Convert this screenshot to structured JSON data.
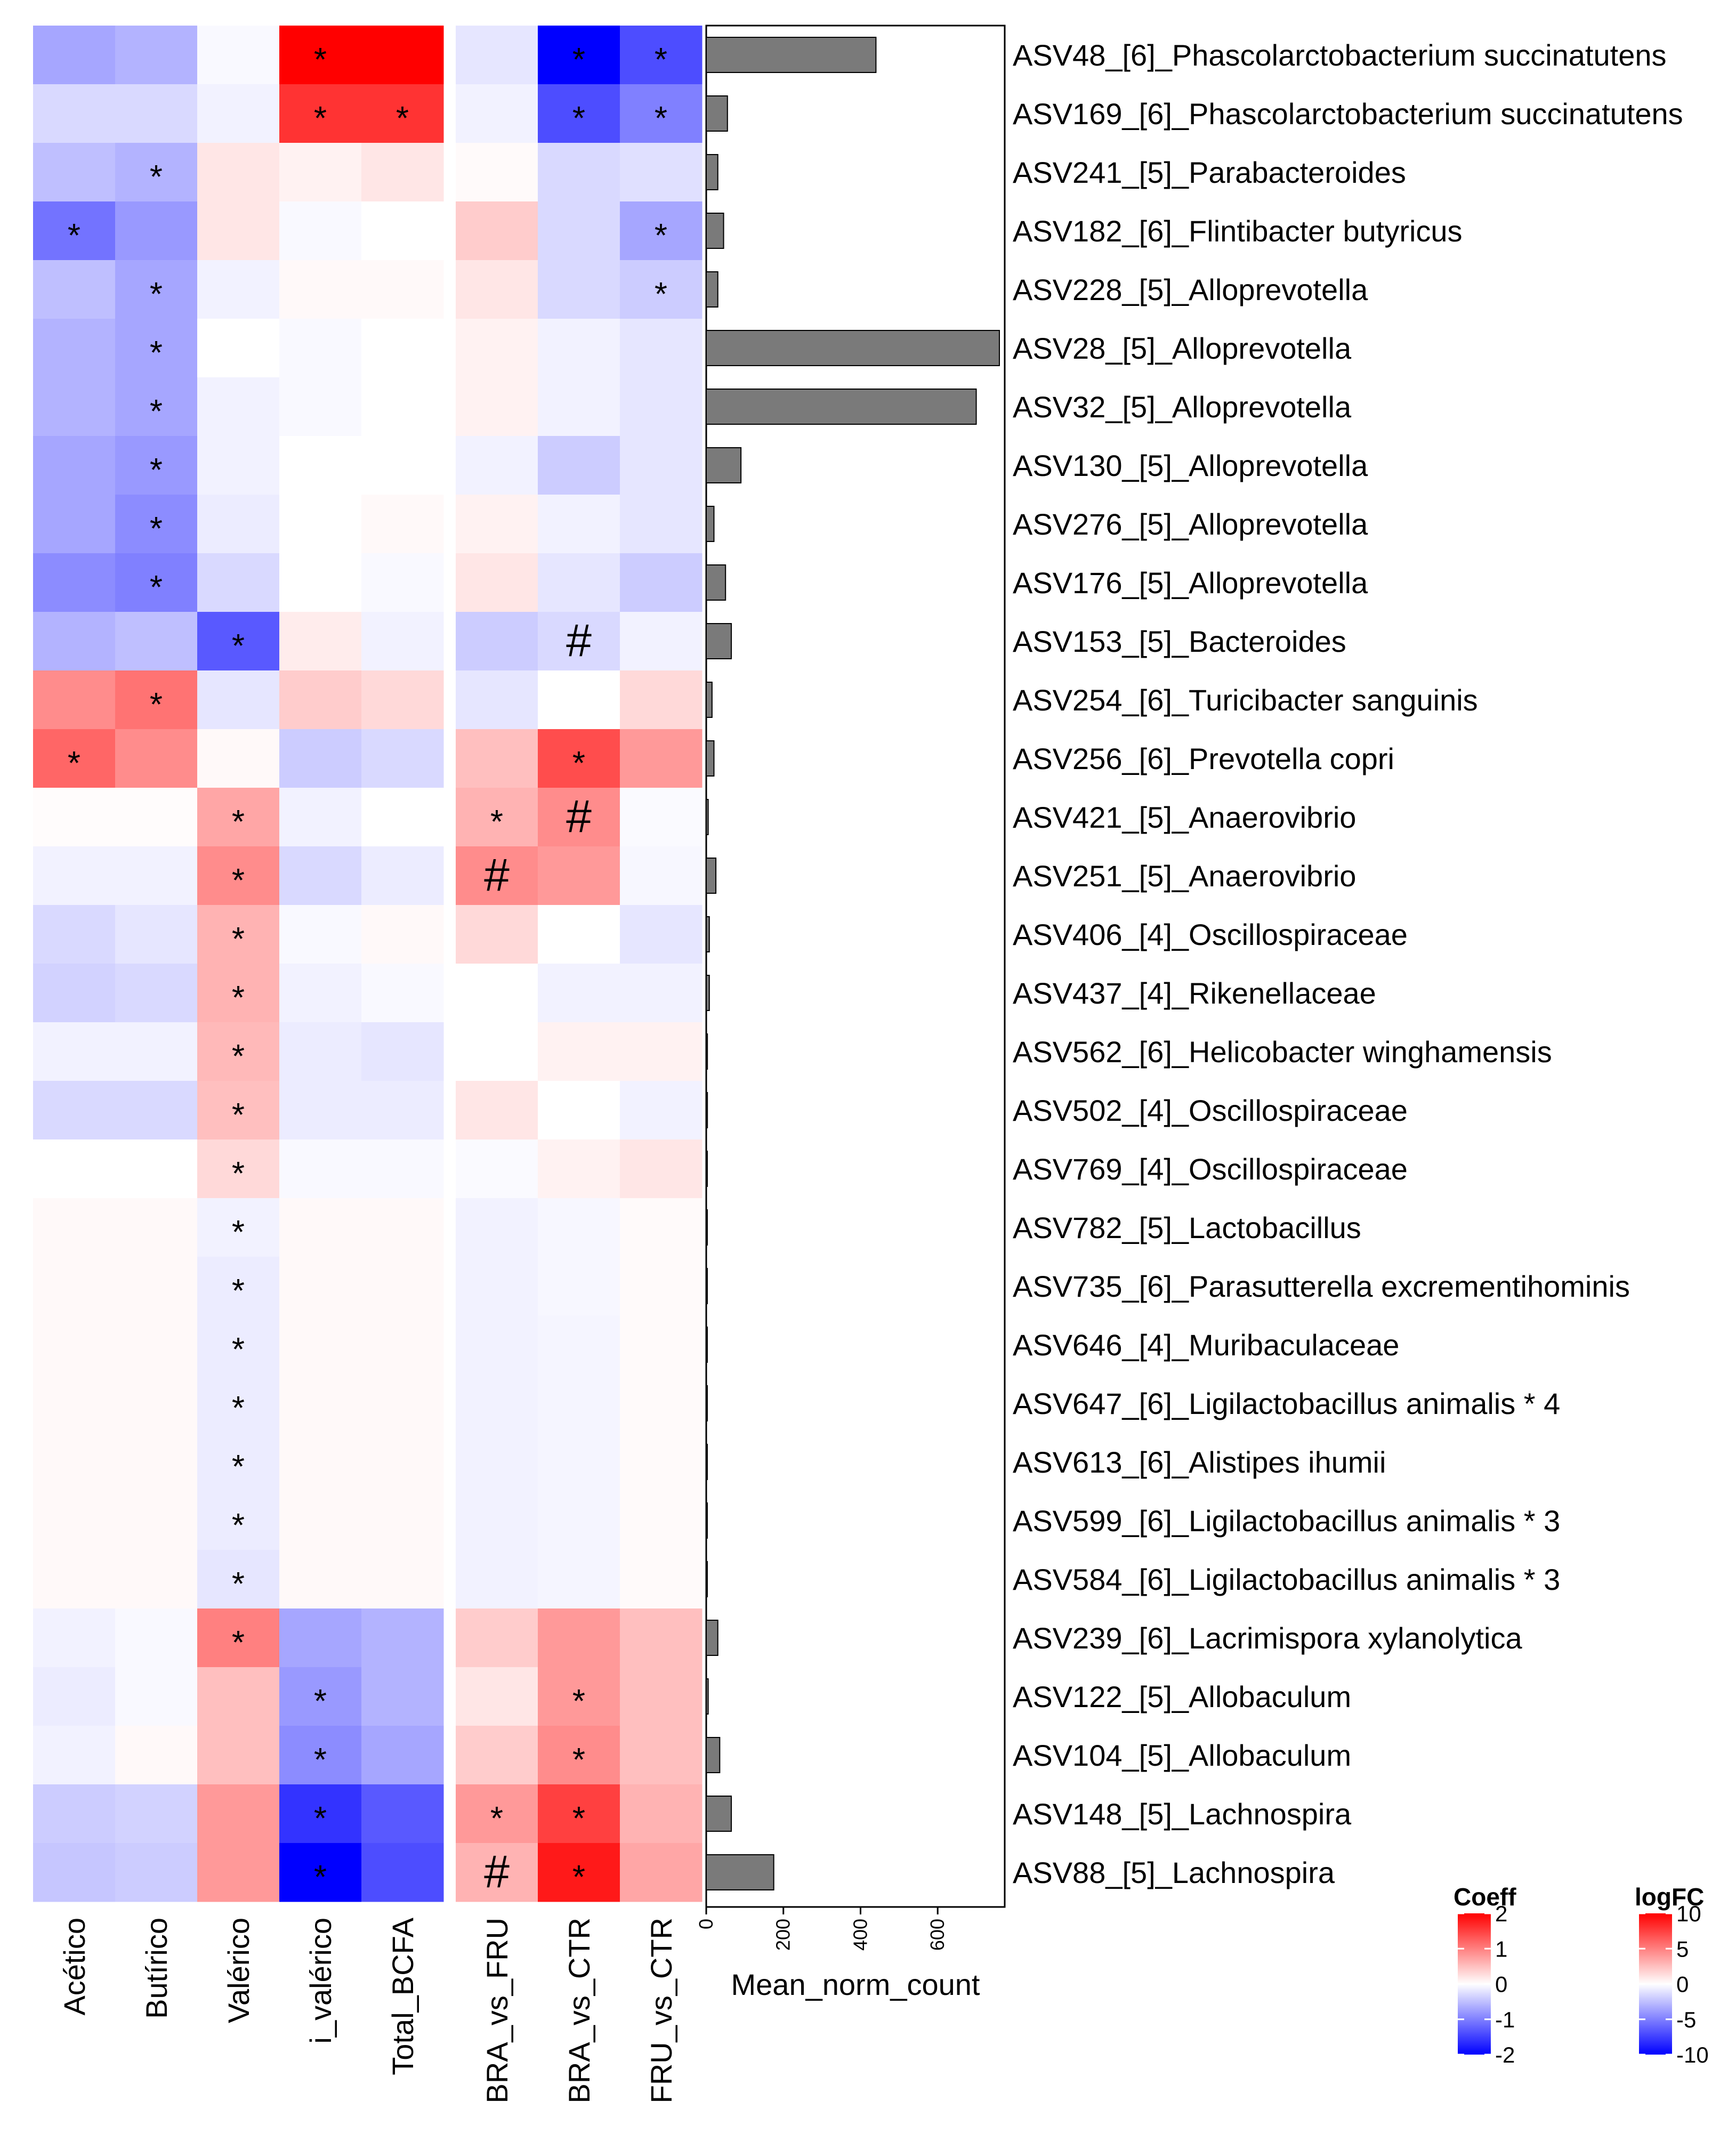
{
  "chart_data": {
    "type": "heatmap",
    "rows": [
      "ASV48_[6]_Phascolarctobacterium succinatutens",
      "ASV169_[6]_Phascolarctobacterium succinatutens",
      "ASV241_[5]_Parabacteroides",
      "ASV182_[6]_Flintibacter butyricus",
      "ASV228_[5]_Alloprevotella",
      "ASV28_[5]_Alloprevotella",
      "ASV32_[5]_Alloprevotella",
      "ASV130_[5]_Alloprevotella",
      "ASV276_[5]_Alloprevotella",
      "ASV176_[5]_Alloprevotella",
      "ASV153_[5]_Bacteroides",
      "ASV254_[6]_Turicibacter sanguinis",
      "ASV256_[6]_Prevotella copri",
      "ASV421_[5]_Anaerovibrio",
      "ASV251_[5]_Anaerovibrio",
      "ASV406_[4]_Oscillospiraceae",
      "ASV437_[4]_Rikenellaceae",
      "ASV562_[6]_Helicobacter winghamensis",
      "ASV502_[4]_Oscillospiraceae",
      "ASV769_[4]_Oscillospiraceae",
      "ASV782_[5]_Lactobacillus",
      "ASV735_[6]_Parasutterella excrementihominis",
      "ASV646_[4]_Muribaculaceae",
      "ASV647_[6]_Ligilactobacillus animalis * 4",
      "ASV613_[6]_Alistipes ihumii",
      "ASV599_[6]_Ligilactobacillus animalis * 3",
      "ASV584_[6]_Ligilactobacillus animalis * 3",
      "ASV239_[6]_Lacrimispora xylanolytica",
      "ASV122_[5]_Allobaculum",
      "ASV104_[5]_Allobaculum",
      "ASV148_[5]_Lachnospira",
      "ASV88_[5]_Lachnospira"
    ],
    "coeff_columns": [
      "Acético",
      "Butírico",
      "Valérico",
      "i_valérico",
      "Total_BCFA"
    ],
    "coeff_values": [
      [
        -0.7,
        -0.6,
        -0.05,
        2.0,
        2.0
      ],
      [
        -0.3,
        -0.3,
        -0.1,
        1.6,
        1.6
      ],
      [
        -0.5,
        -0.6,
        0.2,
        0.1,
        0.2
      ],
      [
        -1.1,
        -0.8,
        0.2,
        -0.05,
        0
      ],
      [
        -0.5,
        -0.7,
        -0.1,
        0.05,
        0.05
      ],
      [
        -0.6,
        -0.7,
        0,
        -0.05,
        0
      ],
      [
        -0.6,
        -0.7,
        -0.1,
        -0.05,
        0
      ],
      [
        -0.7,
        -0.8,
        -0.1,
        0,
        0
      ],
      [
        -0.7,
        -0.9,
        -0.15,
        0,
        0.05
      ],
      [
        -0.9,
        -1.0,
        -0.3,
        0,
        -0.05
      ],
      [
        -0.6,
        -0.5,
        -1.3,
        0.15,
        -0.1
      ],
      [
        0.9,
        1.1,
        -0.2,
        0.4,
        0.3
      ],
      [
        1.2,
        0.9,
        0.05,
        -0.4,
        -0.3
      ],
      [
        0.02,
        0.02,
        0.7,
        -0.1,
        0
      ],
      [
        -0.1,
        -0.1,
        0.9,
        -0.3,
        -0.15
      ],
      [
        -0.3,
        -0.2,
        0.6,
        -0.05,
        0.05
      ],
      [
        -0.35,
        -0.3,
        0.6,
        -0.1,
        -0.05
      ],
      [
        -0.1,
        -0.1,
        0.55,
        -0.15,
        -0.2
      ],
      [
        -0.3,
        -0.3,
        0.5,
        -0.15,
        -0.15
      ],
      [
        0,
        0,
        0.3,
        -0.05,
        -0.05
      ],
      [
        0.05,
        0.05,
        -0.1,
        0.05,
        0.05
      ],
      [
        0.05,
        0.05,
        -0.15,
        0.05,
        0.05
      ],
      [
        0.05,
        0.05,
        -0.15,
        0.05,
        0.05
      ],
      [
        0.05,
        0.05,
        -0.15,
        0.05,
        0.05
      ],
      [
        0.05,
        0.05,
        -0.15,
        0.05,
        0.05
      ],
      [
        0.05,
        0.05,
        -0.15,
        0.05,
        0.05
      ],
      [
        0.05,
        0.05,
        -0.2,
        0.05,
        0.05
      ],
      [
        -0.1,
        -0.05,
        1.0,
        -0.7,
        -0.6
      ],
      [
        -0.15,
        -0.05,
        0.5,
        -0.8,
        -0.6
      ],
      [
        -0.1,
        0.05,
        0.5,
        -0.9,
        -0.7
      ],
      [
        -0.4,
        -0.35,
        0.8,
        -1.6,
        -1.3
      ],
      [
        -0.45,
        -0.4,
        0.8,
        -2.0,
        -1.4
      ]
    ],
    "coeff_signif": [
      [
        "",
        "",
        "",
        "*",
        ""
      ],
      [
        "",
        "",
        "",
        "*",
        "*"
      ],
      [
        "",
        "*",
        "",
        "",
        ""
      ],
      [
        "*",
        "",
        "",
        "",
        ""
      ],
      [
        "",
        "*",
        "",
        "",
        ""
      ],
      [
        "",
        "*",
        "",
        "",
        ""
      ],
      [
        "",
        "*",
        "",
        "",
        ""
      ],
      [
        "",
        "*",
        "",
        "",
        ""
      ],
      [
        "",
        "*",
        "",
        "",
        ""
      ],
      [
        "",
        "*",
        "",
        "",
        ""
      ],
      [
        "",
        "",
        "*",
        "",
        ""
      ],
      [
        "",
        "*",
        "",
        "",
        ""
      ],
      [
        "*",
        "",
        "",
        "",
        ""
      ],
      [
        "",
        "",
        "*",
        "",
        ""
      ],
      [
        "",
        "",
        "*",
        "",
        ""
      ],
      [
        "",
        "",
        "*",
        "",
        ""
      ],
      [
        "",
        "",
        "*",
        "",
        ""
      ],
      [
        "",
        "",
        "*",
        "",
        ""
      ],
      [
        "",
        "",
        "*",
        "",
        ""
      ],
      [
        "",
        "",
        "*",
        "",
        ""
      ],
      [
        "",
        "",
        "*",
        "",
        ""
      ],
      [
        "",
        "",
        "*",
        "",
        ""
      ],
      [
        "",
        "",
        "*",
        "",
        ""
      ],
      [
        "",
        "",
        "*",
        "",
        ""
      ],
      [
        "",
        "",
        "*",
        "",
        ""
      ],
      [
        "",
        "",
        "*",
        "",
        ""
      ],
      [
        "",
        "",
        "*",
        "",
        ""
      ],
      [
        "",
        "",
        "*",
        "",
        ""
      ],
      [
        "",
        "",
        "",
        "*",
        ""
      ],
      [
        "",
        "",
        "",
        "*",
        ""
      ],
      [
        "",
        "",
        "",
        "*",
        ""
      ],
      [
        "",
        "",
        "",
        "*",
        ""
      ]
    ],
    "logfc_columns": [
      "BRA_vs_FRU",
      "BRA_vs_CTR",
      "FRU_vs_CTR"
    ],
    "logfc_values": [
      [
        -1,
        -10,
        -7
      ],
      [
        -0.5,
        -7,
        -5
      ],
      [
        0.2,
        -1.5,
        -1.2
      ],
      [
        2,
        -1.5,
        -3.5
      ],
      [
        1,
        -1.5,
        -2
      ],
      [
        0.5,
        -0.5,
        -1
      ],
      [
        0.5,
        -0.5,
        -1
      ],
      [
        -0.5,
        -2,
        -1
      ],
      [
        0.5,
        -0.5,
        -1
      ],
      [
        1,
        -1,
        -2
      ],
      [
        -2,
        -1.5,
        -0.5
      ],
      [
        -1,
        0,
        1.5
      ],
      [
        2.5,
        7,
        4
      ],
      [
        3,
        4.5,
        -0.2
      ],
      [
        4.5,
        4,
        -0.3
      ],
      [
        1.5,
        0,
        -1
      ],
      [
        0,
        -0.5,
        -0.5
      ],
      [
        0,
        0.5,
        0.5
      ],
      [
        1,
        0,
        -0.5
      ],
      [
        -0.2,
        0.5,
        1
      ],
      [
        -0.5,
        -0.3,
        0.2
      ],
      [
        -0.5,
        -0.3,
        0.2
      ],
      [
        -0.5,
        -0.4,
        0.2
      ],
      [
        -0.5,
        -0.4,
        0.2
      ],
      [
        -0.5,
        -0.4,
        0.2
      ],
      [
        -0.5,
        -0.4,
        0.2
      ],
      [
        -0.5,
        -0.4,
        0.2
      ],
      [
        2,
        4,
        2.5
      ],
      [
        1,
        4,
        2.5
      ],
      [
        2,
        4.5,
        2.5
      ],
      [
        4,
        7.5,
        3
      ],
      [
        3,
        9,
        3.5
      ]
    ],
    "logfc_signif": [
      [
        "",
        "*",
        "*"
      ],
      [
        "",
        "*",
        "*"
      ],
      [
        "",
        "",
        ""
      ],
      [
        "",
        "",
        "*"
      ],
      [
        "",
        "",
        "*"
      ],
      [
        "",
        "",
        ""
      ],
      [
        "",
        "",
        ""
      ],
      [
        "",
        "",
        ""
      ],
      [
        "",
        "",
        ""
      ],
      [
        "",
        "",
        ""
      ],
      [
        "",
        "#",
        ""
      ],
      [
        "",
        "",
        ""
      ],
      [
        "",
        "*",
        ""
      ],
      [
        "*",
        "#",
        ""
      ],
      [
        "#",
        "",
        ""
      ],
      [
        "",
        "",
        ""
      ],
      [
        "",
        "",
        ""
      ],
      [
        "",
        "",
        ""
      ],
      [
        "",
        "",
        ""
      ],
      [
        "",
        "",
        ""
      ],
      [
        "",
        "",
        ""
      ],
      [
        "",
        "",
        ""
      ],
      [
        "",
        "",
        ""
      ],
      [
        "",
        "",
        ""
      ],
      [
        "",
        "",
        ""
      ],
      [
        "",
        "",
        ""
      ],
      [
        "",
        "",
        ""
      ],
      [
        "",
        "",
        ""
      ],
      [
        "",
        "*",
        ""
      ],
      [
        "",
        "*",
        ""
      ],
      [
        "*",
        "*",
        ""
      ],
      [
        "#",
        "*",
        ""
      ]
    ],
    "mean_norm_count": [
      440,
      55,
      30,
      45,
      30,
      760,
      700,
      90,
      20,
      50,
      65,
      15,
      20,
      5,
      25,
      8,
      8,
      3,
      3,
      2,
      2,
      2,
      2,
      2,
      2,
      2,
      2,
      30,
      5,
      35,
      65,
      175
    ],
    "bar_axis": {
      "label": "Mean_norm_count",
      "ticks": [
        0,
        200,
        400,
        600
      ],
      "max": 760
    },
    "legend_coeff": {
      "title": "Coeff",
      "ticks": [
        2,
        1,
        0,
        -1,
        -2
      ],
      "range": [
        -2,
        2
      ],
      "colors": {
        "low": "#0000ff",
        "mid": "#ffffff",
        "high": "#ff0000"
      }
    },
    "legend_logfc": {
      "title": "logFC",
      "ticks": [
        10,
        5,
        0,
        -5,
        -10
      ],
      "range": [
        -10,
        10
      ],
      "colors": {
        "low": "#0000ff",
        "mid": "#ffffff",
        "high": "#ff0000"
      }
    }
  }
}
